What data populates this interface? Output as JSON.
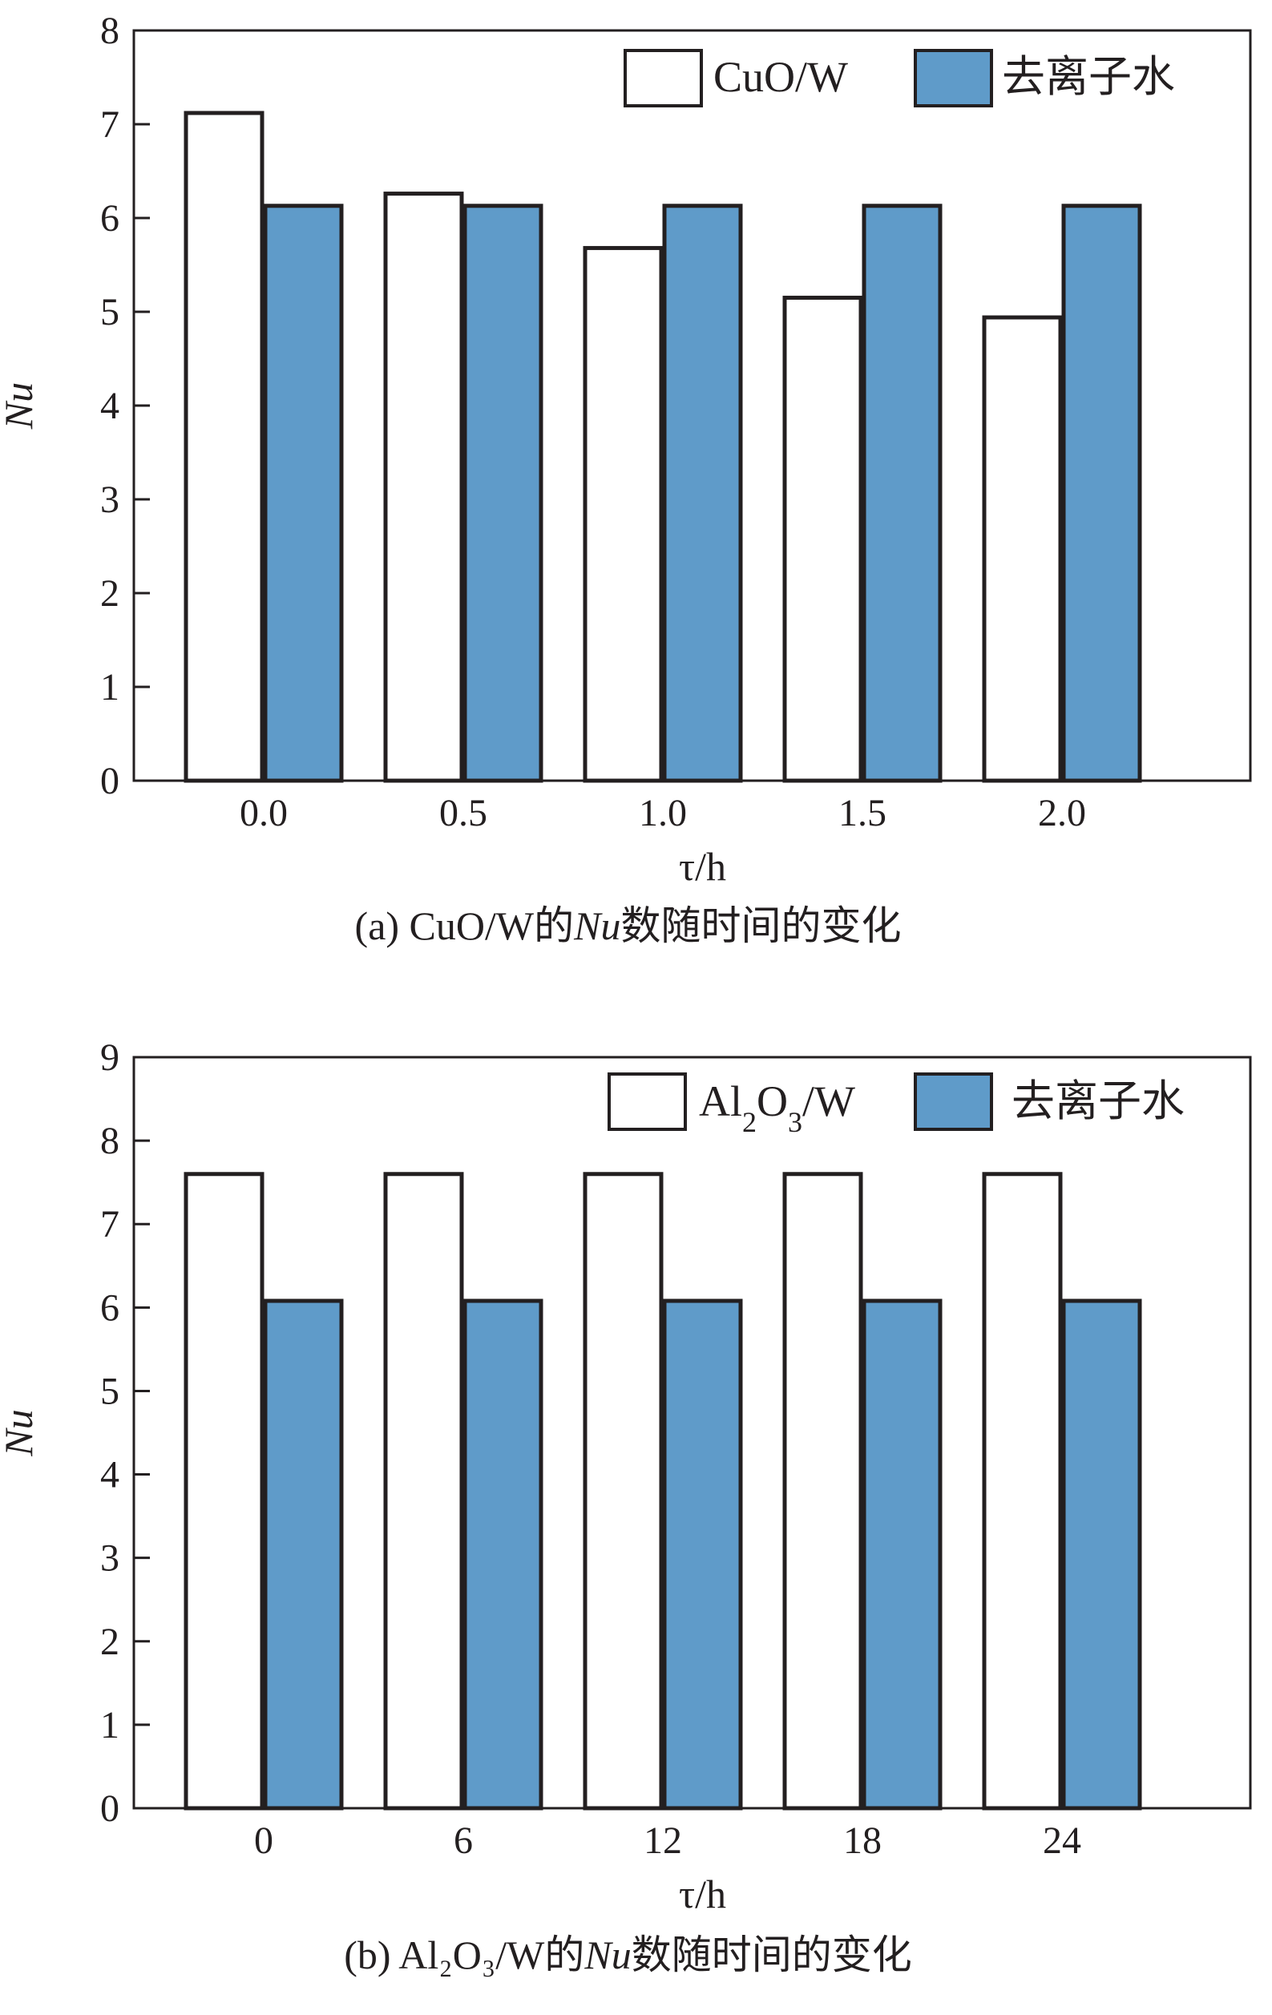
{
  "colors": {
    "series_water": "#5f9bc9",
    "series_nano": "#ffffff",
    "stroke": "#231f20"
  },
  "chart_data": [
    {
      "type": "bar",
      "caption": {
        "prefix": "(a) CuO/W的",
        "italic": "Nu",
        "suffix": "数随时间的变化"
      },
      "xlabel": "τ/h",
      "ylabel": "Nu",
      "ylim": [
        0,
        8
      ],
      "yticks": [
        "0",
        "1",
        "2",
        "3",
        "4",
        "5",
        "6",
        "7",
        "8"
      ],
      "categories": [
        "0.0",
        "0.5",
        "1.0",
        "1.5",
        "2.0"
      ],
      "legend_position": "top-right",
      "grid": false,
      "series": [
        {
          "name": "CuO/W",
          "name_parts": [
            {
              "text": "CuO/W",
              "sub": false
            }
          ],
          "color": "#ffffff",
          "values": [
            7.12,
            6.26,
            5.68,
            5.15,
            4.94
          ]
        },
        {
          "name": "去离子水",
          "name_parts": [
            {
              "text": "去离子水",
              "sub": false
            }
          ],
          "color": "#5f9bc9",
          "values": [
            6.13,
            6.13,
            6.13,
            6.13,
            6.13
          ]
        }
      ]
    },
    {
      "type": "bar",
      "caption": {
        "prefix": "(b) Al₂O₃/W的",
        "italic": "Nu",
        "suffix": "数随时间的变化"
      },
      "xlabel": "τ/h",
      "ylabel": "Nu",
      "ylim": [
        0,
        9
      ],
      "yticks": [
        "0",
        "1",
        "2",
        "3",
        "4",
        "5",
        "6",
        "7",
        "8",
        "9"
      ],
      "categories": [
        "0",
        "6",
        "12",
        "18",
        "24"
      ],
      "legend_position": "top-right",
      "grid": false,
      "series": [
        {
          "name": "Al₂O₃/W",
          "name_parts": [
            {
              "text": "Al",
              "sub": false
            },
            {
              "text": "2",
              "sub": true
            },
            {
              "text": "O",
              "sub": false
            },
            {
              "text": "3",
              "sub": true
            },
            {
              "text": "/W",
              "sub": false
            }
          ],
          "color": "#ffffff",
          "values": [
            7.6,
            7.6,
            7.6,
            7.6,
            7.6
          ]
        },
        {
          "name": "去离子水",
          "name_parts": [
            {
              "text": "去离子水",
              "sub": false
            }
          ],
          "color": "#5f9bc9",
          "values": [
            6.08,
            6.08,
            6.08,
            6.08,
            6.08
          ]
        }
      ]
    }
  ]
}
